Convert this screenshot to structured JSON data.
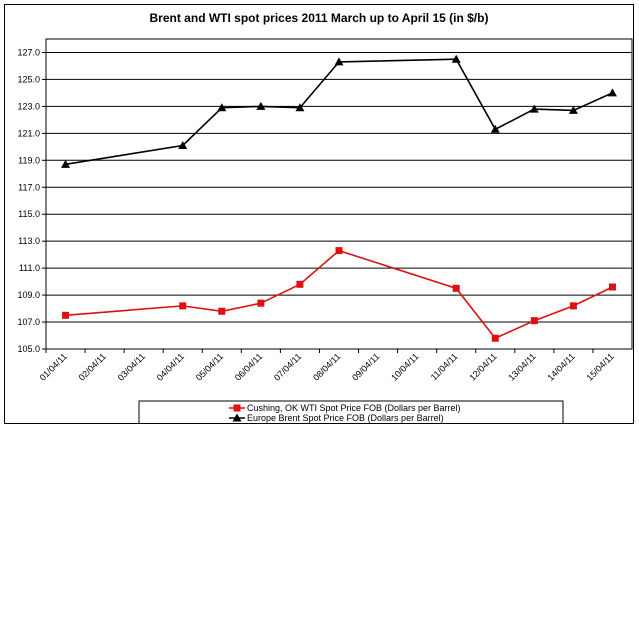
{
  "chart_data": {
    "type": "line",
    "title": "Brent and WTI spot prices 2011 March up to April 15 (in $/b)",
    "xlabel": "",
    "ylabel": "",
    "categories": [
      "01/04/11",
      "02/04/11",
      "03/04/11",
      "04/04/11",
      "05/04/11",
      "06/04/11",
      "07/04/11",
      "08/04/11",
      "09/04/11",
      "10/04/11",
      "11/04/11",
      "12/04/11",
      "13/04/11",
      "14/04/11",
      "15/04/11"
    ],
    "ylim": [
      105.0,
      128.0
    ],
    "yticks": [
      "105.0",
      "107.0",
      "109.0",
      "111.0",
      "113.0",
      "115.0",
      "117.0",
      "119.0",
      "121.0",
      "123.0",
      "125.0",
      "127.0"
    ],
    "grid": true,
    "legend_position": "bottom",
    "series": [
      {
        "name": "Cushing, OK WTI Spot Price FOB (Dollars per Barrel)",
        "color": "#dd1111",
        "marker": "square",
        "values": [
          107.5,
          null,
          null,
          108.2,
          107.8,
          108.4,
          109.8,
          112.3,
          null,
          null,
          109.5,
          105.8,
          107.1,
          108.2,
          109.6
        ]
      },
      {
        "name": "Europe Brent Spot Price FOB (Dollars per Barrel)",
        "color": "#000000",
        "marker": "triangle",
        "values": [
          118.7,
          null,
          null,
          120.1,
          122.9,
          123.0,
          122.9,
          126.3,
          null,
          null,
          126.5,
          121.3,
          122.8,
          122.7,
          124.0
        ]
      }
    ]
  }
}
